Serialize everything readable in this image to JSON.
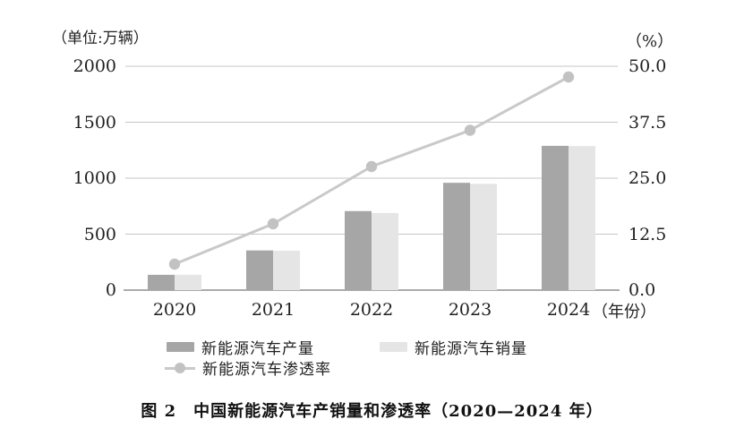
{
  "chart_data": {
    "type": "combo-bar-line",
    "title": "图 2　中国新能源汽车产销量和渗透率（2020—2024 年）",
    "categories": [
      "2020",
      "2021",
      "2022",
      "2023",
      "2024"
    ],
    "series": [
      {
        "name": "新能源汽车产量",
        "type": "bar",
        "axis": "left",
        "color": "#a6a6a6",
        "values": [
          136.6,
          354.5,
          705.8,
          958.7,
          1288.8
        ]
      },
      {
        "name": "新能源汽车销量",
        "type": "bar",
        "axis": "left",
        "color": "#e5e5e5",
        "values": [
          136.7,
          352.1,
          688.7,
          949.5,
          1286.6
        ]
      },
      {
        "name": "新能源汽车渗透率",
        "type": "line",
        "axis": "right",
        "color": "#c9c9c9",
        "dot_color": "#c2c2c2",
        "values": [
          5.8,
          14.8,
          27.6,
          35.7,
          47.6
        ]
      }
    ],
    "left_axis": {
      "unit": "（单位:万辆）",
      "min": 0,
      "max": 2000,
      "ticks": [
        "0",
        "500",
        "1000",
        "1500",
        "2000"
      ]
    },
    "right_axis": {
      "unit": "（%）",
      "min": 0,
      "max": 50,
      "ticks": [
        "0.0",
        "12.5",
        "25.0",
        "37.5",
        "50.0"
      ]
    },
    "x_axis": {
      "suffix": "（年份）"
    },
    "grid": true,
    "legend_position": "bottom",
    "colors": {
      "gridline": "#c6c6c6",
      "baseline": "#8f8f8f",
      "text": "#1f1f1f"
    }
  }
}
